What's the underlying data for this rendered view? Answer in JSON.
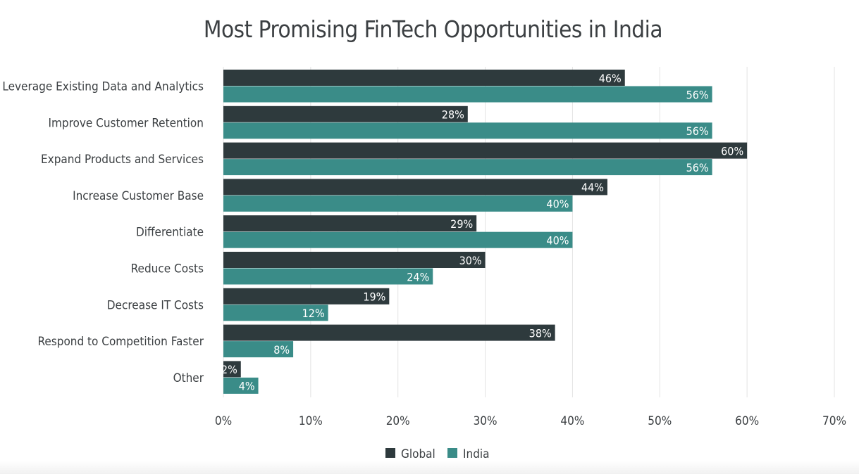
{
  "chart_data": {
    "type": "bar",
    "orientation": "horizontal",
    "title": "Most Promising FinTech Opportunities in India",
    "categories": [
      "Leverage Existing Data and Analytics",
      "Improve Customer Retention",
      "Expand Products and Services",
      "Increase Customer Base",
      "Differentiate",
      "Reduce Costs",
      "Decrease IT Costs",
      "Respond to Competition Faster",
      "Other"
    ],
    "series": [
      {
        "name": "Global",
        "color": "#2e3a3d",
        "values": [
          46,
          28,
          60,
          44,
          29,
          30,
          19,
          38,
          2
        ]
      },
      {
        "name": "India",
        "color": "#3a8c88",
        "values": [
          56,
          56,
          56,
          40,
          40,
          24,
          12,
          8,
          4
        ]
      }
    ],
    "value_suffix": "%",
    "xlim": [
      0,
      70
    ],
    "x_ticks": [
      0,
      10,
      20,
      30,
      40,
      50,
      60,
      70
    ],
    "x_tick_labels": [
      "0%",
      "10%",
      "20%",
      "30%",
      "40%",
      "50%",
      "60%",
      "70%"
    ],
    "grid": "vertical",
    "legend_position": "bottom"
  }
}
